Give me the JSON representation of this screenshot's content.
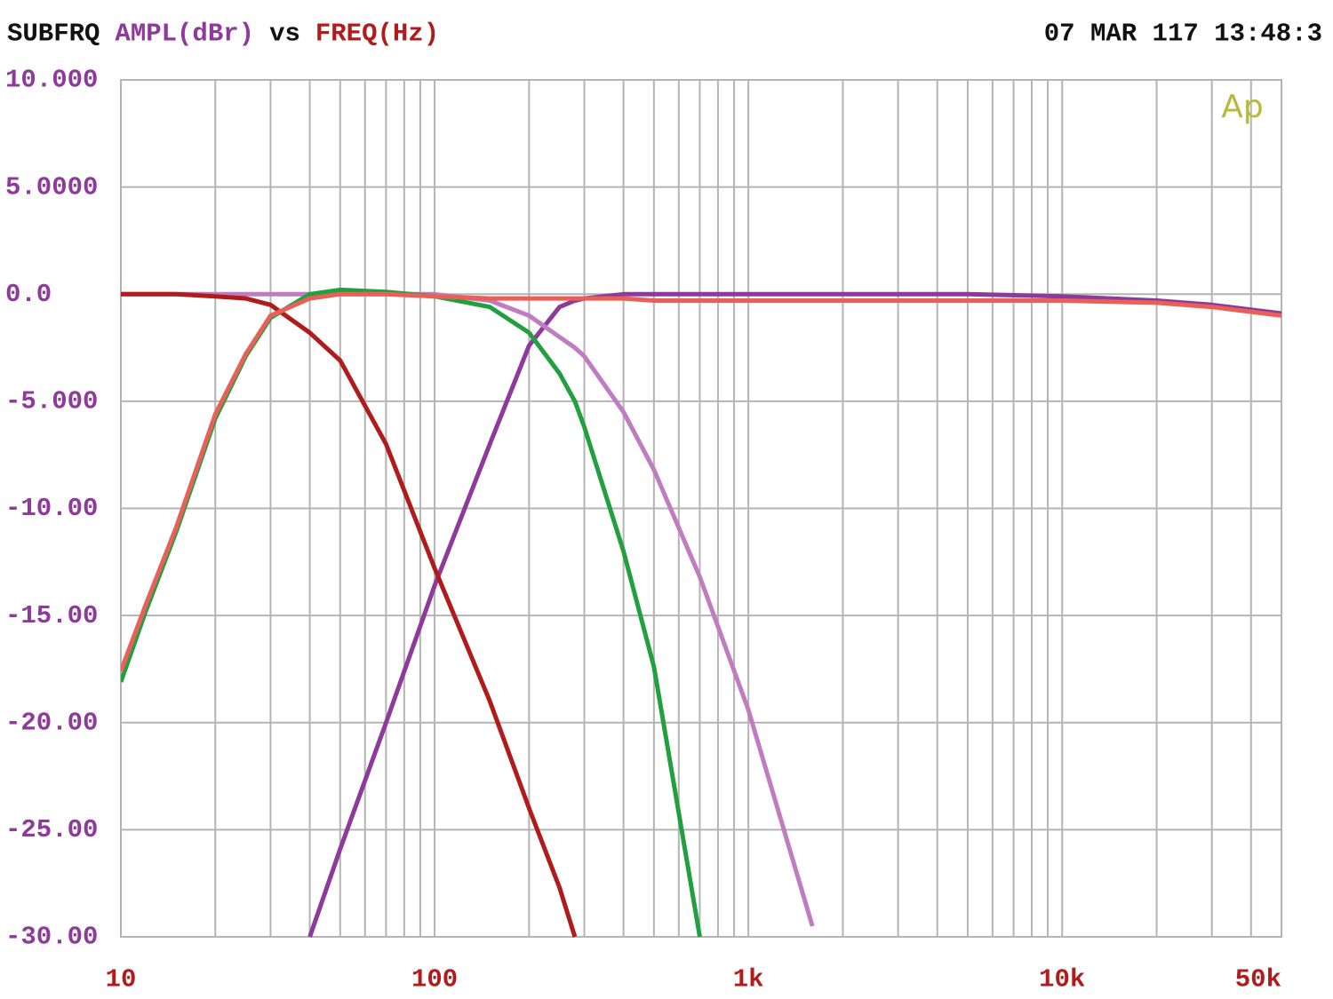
{
  "chart_data": {
    "type": "line",
    "title_parts": [
      {
        "text": "SUBFRQ",
        "color": "#111111"
      },
      {
        "text": "AMPL(dBr)",
        "color": "#8e3a9a"
      },
      {
        "text": "vs",
        "color": "#111111"
      },
      {
        "text": "FREQ(Hz)",
        "color": "#b01c1c"
      }
    ],
    "timestamp": "07 MAR 117 13:48:3",
    "logo": "Ap",
    "xscale": "log",
    "grid": true,
    "x": [
      10,
      12,
      15,
      20,
      25,
      30,
      40,
      50,
      70,
      100,
      150,
      200,
      250,
      280,
      300,
      400,
      500,
      700,
      1000,
      1600,
      2000,
      5000,
      10000,
      20000,
      30000,
      50000
    ],
    "series": [
      {
        "color": "#8e3a9a",
        "values": [
          null,
          null,
          null,
          null,
          null,
          null,
          -30,
          -25.9,
          -20,
          -13.6,
          -7,
          -2.4,
          -0.6,
          -0.3,
          -0.2,
          0,
          0,
          0,
          0,
          0,
          0,
          0,
          -0.1,
          -0.3,
          -0.5,
          -0.9
        ]
      },
      {
        "color": "#c07cc0",
        "values": [
          0,
          0,
          0,
          0,
          0,
          0,
          0,
          0,
          0,
          0,
          -0.3,
          -1,
          -2,
          -2.5,
          -2.9,
          -5.5,
          -8.2,
          -13.2,
          -19.4,
          -29.5,
          null,
          null,
          null,
          null,
          null,
          null
        ]
      },
      {
        "color": "#b01c1c",
        "values": [
          0,
          0,
          0,
          -0.1,
          -0.2,
          -0.5,
          -1.8,
          -3.1,
          -7,
          -12.8,
          -19,
          -24,
          -27.7,
          -30,
          null,
          null,
          null,
          null,
          null,
          null,
          null,
          null,
          null,
          null,
          null,
          null
        ]
      },
      {
        "color": "#22a040",
        "values": [
          -18.1,
          -14.8,
          -11.1,
          -5.8,
          -2.9,
          -1.1,
          0,
          0.2,
          0.1,
          -0.1,
          -0.6,
          -1.8,
          -3.7,
          -5,
          -6.2,
          -12,
          -17.4,
          -30,
          null,
          null,
          null,
          null,
          null,
          null,
          null,
          null
        ]
      },
      {
        "color": "#e8605a",
        "values": [
          -17.6,
          -14.5,
          -10.9,
          -5.6,
          -2.8,
          -1,
          -0.2,
          0,
          0,
          -0.1,
          -0.2,
          -0.2,
          -0.2,
          -0.2,
          -0.2,
          -0.2,
          -0.3,
          -0.3,
          -0.3,
          -0.3,
          -0.3,
          -0.3,
          -0.3,
          -0.4,
          -0.6,
          -1.0
        ]
      }
    ],
    "xlim": [
      10,
      50000
    ],
    "xticks": [
      10,
      100,
      {
        "value": 1000,
        "label": "1k"
      },
      {
        "value": 10000,
        "label": "10k"
      },
      {
        "value": 50000,
        "label": "50k"
      }
    ],
    "ylim": [
      -30,
      10
    ],
    "yticks": [
      {
        "value": 10,
        "label": "10.000"
      },
      {
        "value": 5,
        "label": "5.0000"
      },
      {
        "value": 0,
        "label": "0.0"
      },
      {
        "value": -5,
        "label": "-5.000"
      },
      {
        "value": -10,
        "label": "-10.00"
      },
      {
        "value": -15,
        "label": "-15.00"
      },
      {
        "value": -20,
        "label": "-20.00"
      },
      {
        "value": -25,
        "label": "-25.00"
      },
      {
        "value": -30,
        "label": "-30.00"
      }
    ],
    "tick_label_colors": {
      "x": "#b01c1c",
      "y": "#8e3a9a"
    },
    "logo_color": "#b8b83a"
  }
}
